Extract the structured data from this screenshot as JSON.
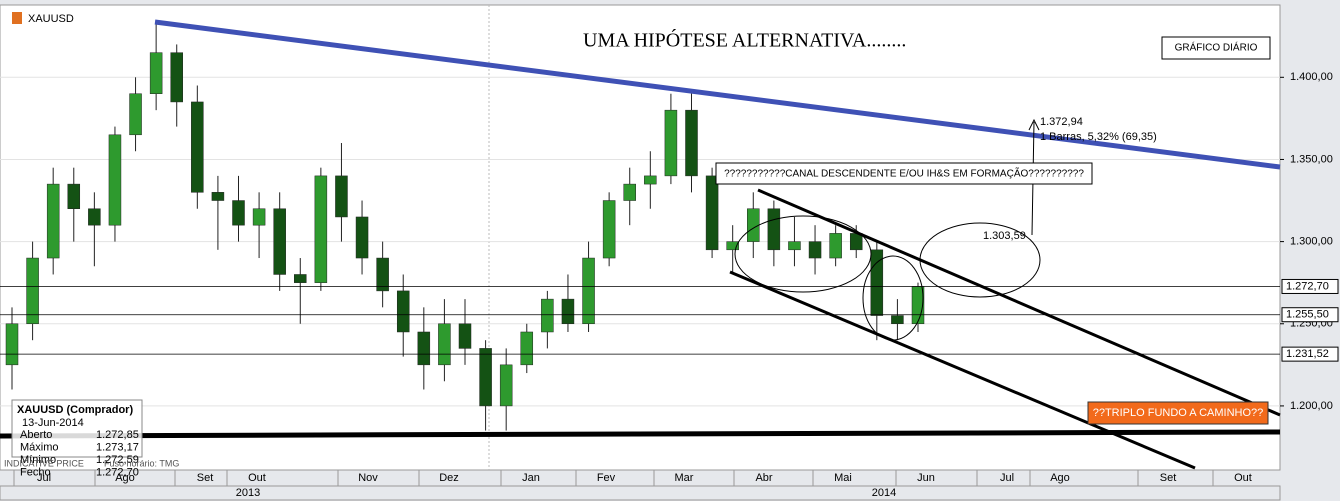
{
  "chart_data": {
    "type": "candlestick",
    "symbol": "XAUUSD",
    "title": "UMA HIPÓTESE ALTERNATIVA........",
    "badge": "GRÁFICO DIÁRIO",
    "ylim": [
      1161,
      1444
    ],
    "yticks": [
      {
        "value": 1200,
        "label": "1.200,00"
      },
      {
        "value": 1250,
        "label": "1.250,00"
      },
      {
        "value": 1300,
        "label": "1.300,00"
      },
      {
        "value": 1350,
        "label": "1.350,00"
      },
      {
        "value": 1400,
        "label": "1.400,00"
      }
    ],
    "months": [
      "Jul",
      "Ago",
      "Set",
      "Out",
      "Nov",
      "Dez",
      "Jan",
      "Fev",
      "Mar",
      "Abr",
      "Mai",
      "Jun",
      "Jul",
      "Ago",
      "Set",
      "Out"
    ],
    "years": [
      "2013",
      "2014"
    ],
    "color_up": "#2e9a2e",
    "color_down": "#145214",
    "open": [
      1225,
      1250,
      1290,
      1335,
      1320,
      1310,
      1365,
      1390,
      1415,
      1385,
      1330,
      1325,
      1310,
      1320,
      1280,
      1275,
      1340,
      1315,
      1290,
      1270,
      1245,
      1225,
      1250,
      1235,
      1200,
      1225,
      1245,
      1265,
      1250,
      1290,
      1325,
      1335,
      1340,
      1380,
      1340,
      1295,
      1300,
      1320,
      1295,
      1300,
      1290,
      1305,
      1295,
      1255,
      1250
    ],
    "high": [
      1260,
      1300,
      1345,
      1345,
      1330,
      1370,
      1400,
      1433,
      1420,
      1395,
      1340,
      1340,
      1330,
      1330,
      1290,
      1345,
      1360,
      1325,
      1300,
      1280,
      1260,
      1265,
      1265,
      1240,
      1235,
      1250,
      1270,
      1280,
      1300,
      1330,
      1345,
      1355,
      1390,
      1392,
      1345,
      1310,
      1330,
      1325,
      1315,
      1310,
      1310,
      1310,
      1300,
      1265,
      1275
    ],
    "low": [
      1210,
      1240,
      1280,
      1300,
      1285,
      1300,
      1355,
      1380,
      1370,
      1320,
      1295,
      1300,
      1290,
      1270,
      1250,
      1270,
      1300,
      1280,
      1260,
      1230,
      1210,
      1215,
      1225,
      1185,
      1185,
      1220,
      1235,
      1245,
      1245,
      1285,
      1310,
      1320,
      1335,
      1330,
      1290,
      1280,
      1290,
      1285,
      1285,
      1280,
      1285,
      1290,
      1240,
      1240,
      1245
    ],
    "close": [
      1250,
      1290,
      1335,
      1320,
      1310,
      1365,
      1390,
      1415,
      1385,
      1330,
      1325,
      1310,
      1320,
      1280,
      1275,
      1340,
      1315,
      1290,
      1270,
      1245,
      1225,
      1250,
      1235,
      1200,
      1225,
      1245,
      1265,
      1250,
      1290,
      1325,
      1335,
      1340,
      1380,
      1340,
      1295,
      1300,
      1320,
      1295,
      1300,
      1290,
      1305,
      1295,
      1255,
      1250,
      1272.7
    ],
    "levels": [
      {
        "value": 1272.7,
        "label": "1.272,70"
      },
      {
        "value": 1255.5,
        "label": "1.255,50"
      },
      {
        "value": 1231.52,
        "label": "1.231,52"
      }
    ],
    "annotations": {
      "canal": "???????????CANAL DESCENDENTE E/OU IH&S EM FORMAÇÃO??????????",
      "target": "1.372,94",
      "measure": "1 Barras, 5,32% (69,35)",
      "start": "1.303,59",
      "triplo": "??TRIPLO FUNDO A CAMINHO??"
    },
    "info": {
      "title": "XAUUSD (Comprador)",
      "date": "13-Jun-2014",
      "rows": [
        [
          "Aberto",
          "1.272,85"
        ],
        [
          "Máximo",
          "1.273,17"
        ],
        [
          "Mínimo",
          "1.272,59"
        ],
        [
          "Fecho",
          "1.272,70"
        ]
      ]
    },
    "footer": {
      "price": "INDICATIVE PRICE",
      "tz": "Fuso horário: TMG"
    }
  }
}
